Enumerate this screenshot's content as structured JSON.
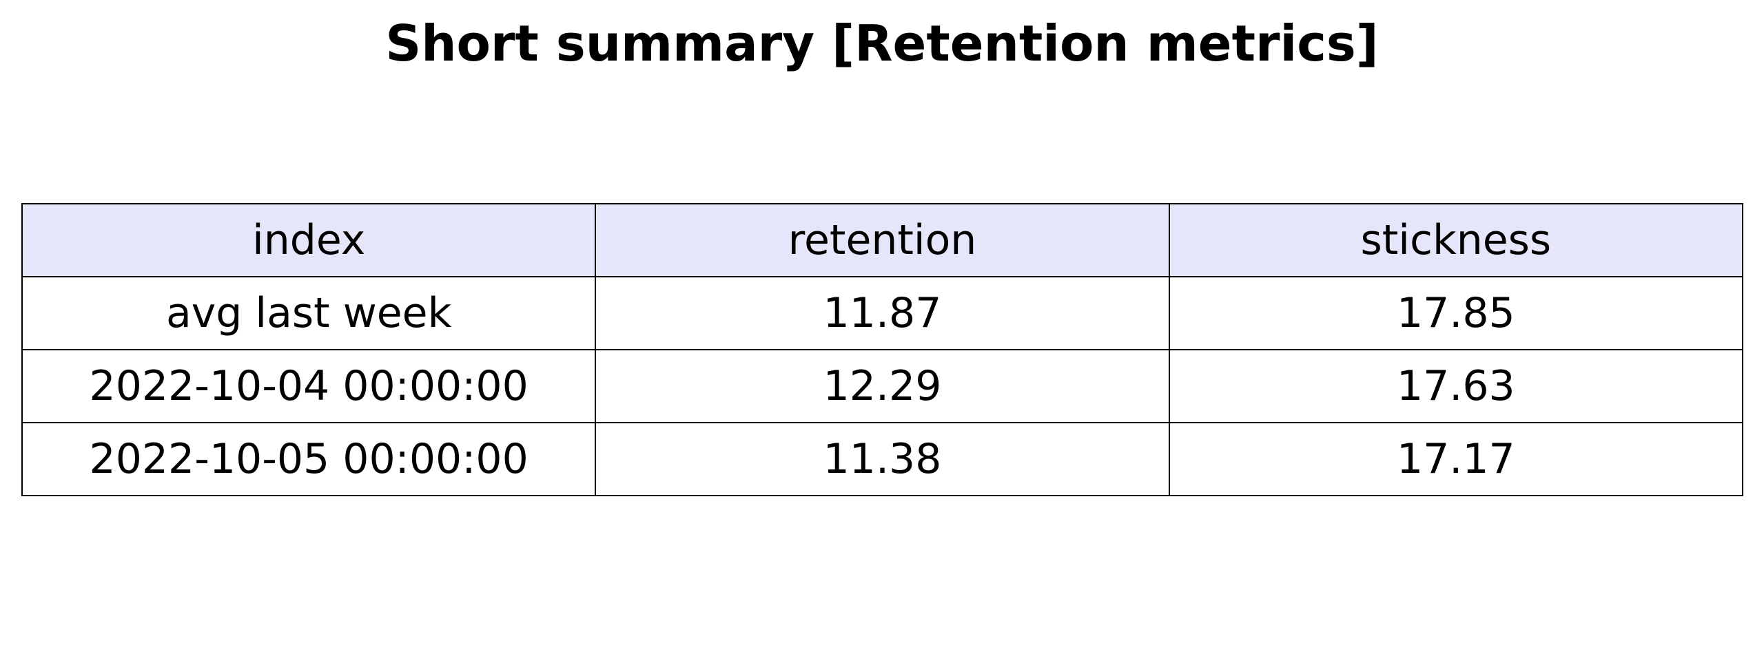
{
  "chart_data": {
    "type": "table",
    "title": "Short summary [Retention metrics]",
    "header_color": "#e6e6fa",
    "columns": [
      "index",
      "retention",
      "stickness"
    ],
    "rows": [
      [
        "avg last week",
        "11.87",
        "17.85"
      ],
      [
        "2022-10-04 00:00:00",
        "12.29",
        "17.63"
      ],
      [
        "2022-10-05 00:00:00",
        "11.38",
        "17.17"
      ]
    ]
  }
}
